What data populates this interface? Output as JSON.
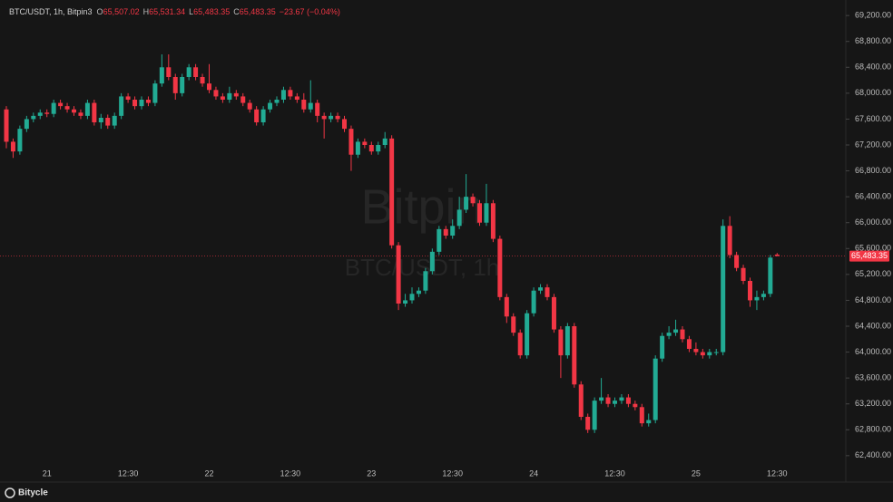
{
  "header": {
    "symbol": "BTC/USDT, 1h, Bitpin3",
    "ohlc": [
      {
        "key": "O",
        "text": "65,507.02"
      },
      {
        "key": "H",
        "text": "65,531.34"
      },
      {
        "key": "L",
        "text": "65,483.35"
      },
      {
        "key": "C",
        "text": "65,483.35"
      }
    ],
    "change": "−23.67 (−0.04%)"
  },
  "watermark": {
    "brand": "Bitpin",
    "pair": "BTC/USDT, 1h"
  },
  "footer": {
    "brand": "Bitycle"
  },
  "chart_data": {
    "type": "candlestick",
    "up_color": "#22ab94",
    "down_color": "#f23645",
    "categories": [
      null,
      null,
      null,
      null,
      null,
      null,
      "21",
      null,
      null,
      null,
      null,
      null,
      null,
      null,
      null,
      null,
      null,
      null,
      "12:30",
      null,
      null,
      null,
      null,
      null,
      null,
      null,
      null,
      null,
      null,
      null,
      "22",
      null,
      null,
      null,
      null,
      null,
      null,
      null,
      null,
      null,
      null,
      null,
      "12:30",
      null,
      null,
      null,
      null,
      null,
      null,
      null,
      null,
      null,
      null,
      null,
      "23",
      null,
      null,
      null,
      null,
      null,
      null,
      null,
      null,
      null,
      null,
      null,
      "12:30",
      null,
      null,
      null,
      null,
      null,
      null,
      null,
      null,
      null,
      null,
      null,
      "24",
      null,
      null,
      null,
      null,
      null,
      null,
      null,
      null,
      null,
      null,
      null,
      "12:30",
      null,
      null,
      null,
      null,
      null,
      null,
      null,
      null,
      null,
      null,
      null,
      "25",
      null,
      null,
      null,
      null,
      null,
      null,
      null,
      null,
      null,
      null,
      null,
      "12:30"
    ],
    "open": [
      67750,
      67250,
      67100,
      67450,
      67600,
      67650,
      67700,
      67680,
      67850,
      67800,
      67750,
      67700,
      67650,
      67850,
      67550,
      67620,
      67500,
      67650,
      67950,
      67900,
      67800,
      67900,
      67850,
      68150,
      68400,
      68250,
      68000,
      68250,
      68400,
      68250,
      68150,
      68050,
      67950,
      67900,
      68000,
      67950,
      67850,
      67750,
      67550,
      67750,
      67850,
      67900,
      68050,
      67950,
      67900,
      67750,
      67850,
      67650,
      67600,
      67650,
      67600,
      67450,
      67050,
      67250,
      67200,
      67100,
      67200,
      67300,
      65650,
      64750,
      64800,
      64900,
      64950,
      65250,
      65550,
      65900,
      65800,
      65950,
      66200,
      66400,
      66300,
      66000,
      66300,
      65750,
      64850,
      64550,
      64300,
      63950,
      64600,
      64950,
      65000,
      64850,
      64350,
      63950,
      64400,
      63500,
      63000,
      62800,
      63250,
      63300,
      63200,
      63250,
      63300,
      63200,
      63150,
      62900,
      62950,
      63900,
      64250,
      64300,
      64350,
      64200,
      64050,
      64000,
      63950,
      64000,
      64000,
      65950,
      65500,
      65300,
      65100,
      64800,
      64850,
      64900,
      65507.02
    ],
    "high": [
      67800,
      67300,
      67500,
      67650,
      67700,
      67750,
      67750,
      67900,
      67900,
      67850,
      67800,
      67750,
      67900,
      67900,
      67680,
      67670,
      67700,
      68000,
      68000,
      67950,
      67950,
      67950,
      68200,
      68600,
      68600,
      68300,
      68300,
      68450,
      68450,
      68300,
      68450,
      68100,
      68000,
      68100,
      68050,
      68000,
      67900,
      67800,
      67800,
      67900,
      67950,
      68100,
      68100,
      68000,
      68000,
      68200,
      67900,
      67700,
      67700,
      67700,
      67650,
      67500,
      67300,
      67300,
      67250,
      67250,
      67400,
      67350,
      65700,
      64900,
      65000,
      65000,
      65300,
      65600,
      65950,
      65950,
      66050,
      66400,
      66750,
      66450,
      66350,
      66600,
      66350,
      65800,
      64900,
      64600,
      64350,
      64650,
      65000,
      65050,
      65050,
      64900,
      64400,
      64450,
      64450,
      63550,
      63050,
      63300,
      63600,
      63350,
      63300,
      63350,
      63350,
      63250,
      63200,
      63050,
      63950,
      64300,
      64400,
      64500,
      64400,
      64250,
      64150,
      64050,
      64050,
      64050,
      66050,
      66100,
      65550,
      65350,
      65150,
      64950,
      64950,
      65500,
      65531.34
    ],
    "low": [
      67150,
      67000,
      67050,
      67400,
      67550,
      67600,
      67630,
      67630,
      67750,
      67700,
      67650,
      67600,
      67600,
      67500,
      67450,
      67450,
      67450,
      67600,
      67850,
      67750,
      67750,
      67800,
      67800,
      68100,
      68200,
      67900,
      67950,
      68200,
      68200,
      68100,
      68000,
      67900,
      67850,
      67850,
      67900,
      67800,
      67700,
      67500,
      67500,
      67700,
      67800,
      67850,
      67900,
      67850,
      67700,
      67700,
      67550,
      67300,
      67550,
      67550,
      67400,
      66800,
      67000,
      67150,
      67050,
      67050,
      67150,
      65600,
      64650,
      64700,
      64750,
      64850,
      64900,
      65200,
      65500,
      65750,
      65750,
      65900,
      66150,
      66250,
      65950,
      65950,
      65700,
      64800,
      64450,
      64250,
      63900,
      63900,
      64550,
      64900,
      64800,
      64300,
      63600,
      63900,
      63450,
      62950,
      62750,
      62750,
      63200,
      63150,
      63150,
      63200,
      63150,
      63100,
      62850,
      62850,
      62900,
      63850,
      64200,
      64250,
      64150,
      64000,
      63950,
      63900,
      63900,
      63950,
      63950,
      65450,
      65250,
      65050,
      64700,
      64650,
      64800,
      64850,
      65483.35
    ],
    "close": [
      67250,
      67100,
      67450,
      67600,
      67650,
      67700,
      67680,
      67850,
      67800,
      67750,
      67700,
      67650,
      67850,
      67550,
      67620,
      67500,
      67650,
      67950,
      67900,
      67800,
      67900,
      67850,
      68150,
      68400,
      68250,
      68000,
      68250,
      68400,
      68250,
      68150,
      68050,
      67950,
      67900,
      68000,
      67950,
      67850,
      67750,
      67550,
      67750,
      67850,
      67900,
      68050,
      67950,
      67900,
      67750,
      67850,
      67650,
      67600,
      67650,
      67600,
      67450,
      67050,
      67250,
      67200,
      67100,
      67200,
      67300,
      65650,
      64750,
      64800,
      64900,
      64950,
      65250,
      65550,
      65900,
      65800,
      65950,
      66200,
      66400,
      66300,
      66000,
      66300,
      65750,
      64850,
      64550,
      64300,
      63950,
      64600,
      64950,
      65000,
      64850,
      64350,
      63950,
      64400,
      63500,
      63000,
      62800,
      63250,
      63300,
      63200,
      63250,
      63300,
      63200,
      63150,
      62900,
      62950,
      63900,
      64250,
      64300,
      64350,
      64200,
      64050,
      64000,
      63950,
      64000,
      64000,
      65950,
      65500,
      65300,
      65100,
      64800,
      64850,
      64900,
      65460,
      65483.35
    ],
    "ylim": [
      62230,
      69300
    ],
    "yticks": [
      {
        "value": 62400,
        "label": "62,400.00"
      },
      {
        "value": 62800,
        "label": "62,800.00"
      },
      {
        "value": 63200,
        "label": "63,200.00"
      },
      {
        "value": 63600,
        "label": "63,600.00"
      },
      {
        "value": 64000,
        "label": "64,000.00"
      },
      {
        "value": 64400,
        "label": "64,400.00"
      },
      {
        "value": 64800,
        "label": "64,800.00"
      },
      {
        "value": 65200,
        "label": "65,200.00"
      },
      {
        "value": 65600,
        "label": "65,600.00"
      },
      {
        "value": 66000,
        "label": "66,000.00"
      },
      {
        "value": 66400,
        "label": "66,400.00"
      },
      {
        "value": 66800,
        "label": "66,800.00"
      },
      {
        "value": 67200,
        "label": "67,200.00"
      },
      {
        "value": 67600,
        "label": "67,600.00"
      },
      {
        "value": 68000,
        "label": "68,000.00"
      },
      {
        "value": 68400,
        "label": "68,400.00"
      },
      {
        "value": 68800,
        "label": "68,800.00"
      },
      {
        "value": 69200,
        "label": "69,200.00"
      }
    ],
    "last_price": {
      "value": 65483.35,
      "label": "65,483.35"
    }
  }
}
